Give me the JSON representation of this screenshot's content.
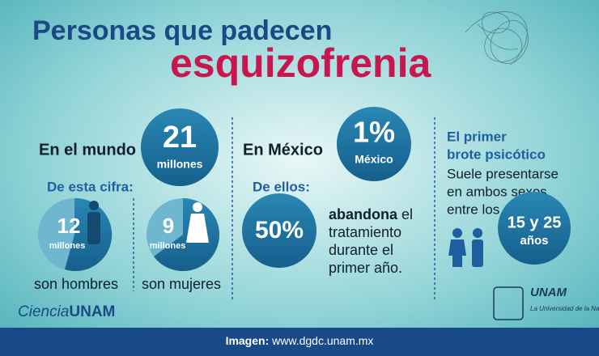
{
  "header": {
    "line1": "Personas que padecen",
    "line2": "esquizofrenia"
  },
  "world": {
    "label": "En el mundo",
    "total": "21",
    "total_unit": "millones",
    "subtitle": "De esta cifra:",
    "men": {
      "number": "12",
      "unit": "millones",
      "caption": "son hombres"
    },
    "women": {
      "number": "9",
      "unit": "millones",
      "caption": "son mujeres"
    }
  },
  "mexico": {
    "label": "En México",
    "percent": "1%",
    "percent_caption": "México",
    "subtitle": "De ellos:",
    "abandon_percent": "50%",
    "abandon_bold": "abandona",
    "abandon_lines": [
      " el",
      "tratamiento",
      "durante el",
      "primer año."
    ]
  },
  "onset": {
    "title_lines": [
      "El primer",
      "brote psicótico"
    ],
    "text_lines": [
      "Suele presentarse",
      "en ambos sexos",
      "entre los"
    ],
    "ages": "15 y 25",
    "ages_unit": "años"
  },
  "footer": {
    "credit_label": "Imagen:",
    "credit_url": " www.dgdc.unam.mx"
  },
  "logos": {
    "ciencia": "Ciencia",
    "unam": "UNAM",
    "unam_right": "UNAM",
    "tagline": "La Universidad de la Nación"
  }
}
